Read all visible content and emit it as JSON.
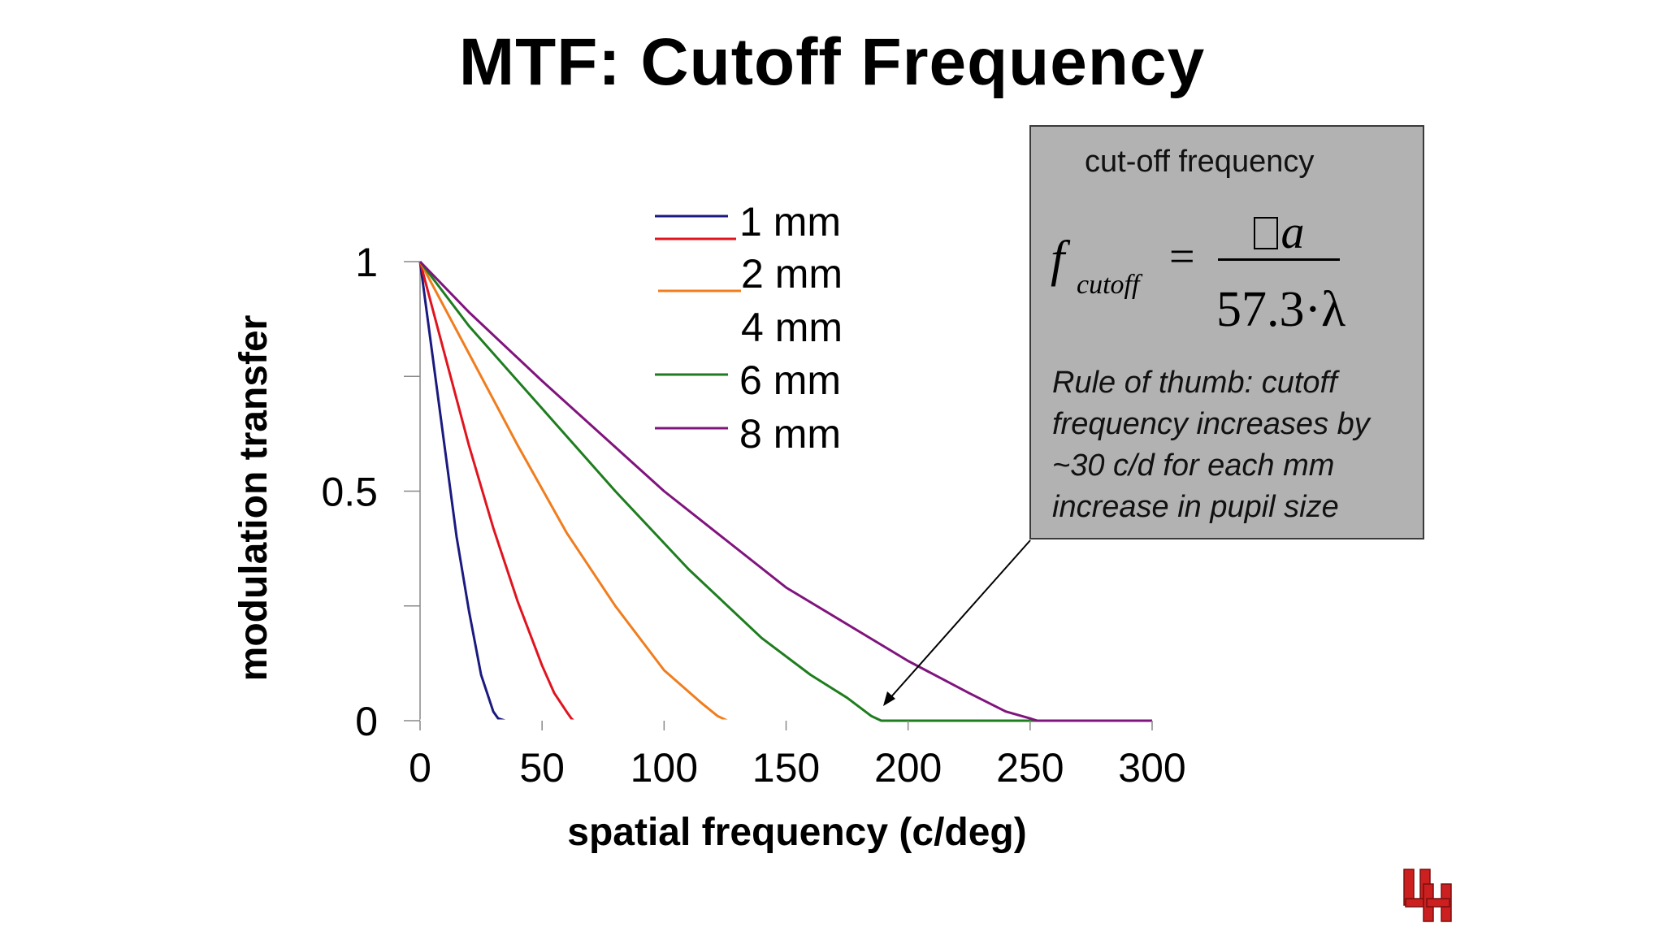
{
  "title": "MTF: Cutoff Frequency",
  "chart_data": {
    "type": "line",
    "xlabel": "spatial frequency (c/deg)",
    "ylabel": "modulation transfer",
    "xlim": [
      0,
      300
    ],
    "ylim": [
      0,
      1
    ],
    "x_ticks": [
      "0",
      "50",
      "100",
      "150",
      "200",
      "250",
      "300"
    ],
    "y_ticks": [
      "0",
      "0.5",
      "1"
    ],
    "grid": false,
    "legend_position": "top-center",
    "series": [
      {
        "name": "1 mm",
        "color": "#1a1a80",
        "x": [
          0,
          5,
          10,
          15,
          20,
          25,
          30,
          32,
          35,
          300
        ],
        "y": [
          1,
          0.8,
          0.6,
          0.4,
          0.24,
          0.1,
          0.02,
          0.005,
          0,
          0
        ]
      },
      {
        "name": "2 mm",
        "color": "#e0141e",
        "x": [
          0,
          10,
          20,
          30,
          40,
          50,
          55,
          60,
          62,
          63,
          300
        ],
        "y": [
          1,
          0.8,
          0.6,
          0.42,
          0.26,
          0.12,
          0.06,
          0.02,
          0.005,
          0,
          0
        ]
      },
      {
        "name": "2 mm",
        "color": "#f07d1e",
        "x": [
          0,
          20,
          40,
          60,
          80,
          100,
          115,
          122,
          126,
          300
        ],
        "y": [
          1,
          0.8,
          0.6,
          0.41,
          0.25,
          0.11,
          0.04,
          0.01,
          0,
          0
        ]
      },
      {
        "name": "4 mm",
        "color": "#ffffff",
        "x": [
          0,
          300
        ],
        "y": [
          0,
          0
        ]
      },
      {
        "name": "6 mm",
        "color": "#1e7d1e",
        "x": [
          0,
          20,
          50,
          80,
          110,
          140,
          160,
          175,
          185,
          189,
          300
        ],
        "y": [
          1,
          0.86,
          0.68,
          0.5,
          0.33,
          0.18,
          0.1,
          0.05,
          0.01,
          0,
          0
        ]
      },
      {
        "name": "8 mm",
        "color": "#80147d",
        "x": [
          0,
          20,
          50,
          100,
          150,
          200,
          225,
          240,
          250,
          253,
          300
        ],
        "y": [
          1,
          0.89,
          0.74,
          0.5,
          0.29,
          0.13,
          0.06,
          0.02,
          0.005,
          0,
          0
        ]
      }
    ],
    "legend_entries": [
      {
        "label": "1 mm",
        "color": "#1a1a80"
      },
      {
        "label": "2 mm",
        "color": "#e0141e"
      },
      {
        "label": "2 mm",
        "color": "#f07d1e"
      },
      {
        "label": "4 mm",
        "color": "#ffffff"
      },
      {
        "label": "6 mm",
        "color": "#1e7d1e"
      },
      {
        "label": "8 mm",
        "color": "#80147d"
      }
    ]
  },
  "info_box": {
    "heading": "cut-off frequency",
    "formula": {
      "f": "f",
      "subscript": "cutoff",
      "equals": "=",
      "numerator_symbol": "a",
      "denominator": "57.3·λ"
    },
    "note": "Rule of thumb: cutoff frequency increases by ~30 c/d for each mm increase in pupil size",
    "background_color": "#b2b2b2"
  },
  "logo": {
    "text": "UH",
    "color": "#cc1f1f"
  }
}
